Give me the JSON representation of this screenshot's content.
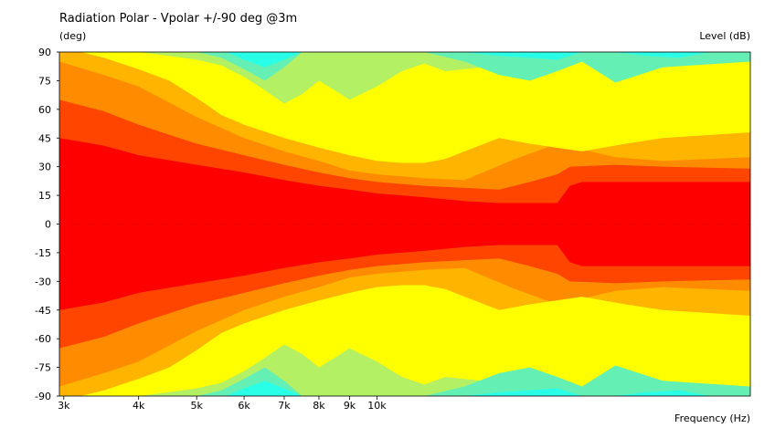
{
  "chart_data": {
    "type": "heatmap",
    "title": "Radiation Polar - Vpolar +/-90 deg @3m",
    "ylabel": "(deg)",
    "xlabel": "Frequency  (Hz)",
    "colorbar_label": "Level  (dB)",
    "x_scale": "log",
    "xlim": [
      2950,
      42000
    ],
    "ylim": [
      -90,
      90
    ],
    "x_ticks": [
      {
        "value": 3000,
        "label": "3k"
      },
      {
        "value": 4000,
        "label": "4k"
      },
      {
        "value": 5000,
        "label": "5k"
      },
      {
        "value": 6000,
        "label": "6k"
      },
      {
        "value": 7000,
        "label": "7k"
      },
      {
        "value": 8000,
        "label": "8k"
      },
      {
        "value": 9000,
        "label": "9k"
      },
      {
        "value": 10000,
        "label": "10k"
      }
    ],
    "y_ticks": [
      90,
      75,
      60,
      45,
      30,
      15,
      0,
      -15,
      -30,
      -45,
      -60,
      -75,
      -90
    ],
    "level_colors": [
      "#ff0000",
      "#ff4500",
      "#ff8c00",
      "#ffb400",
      "#ffff00",
      "#b4f064",
      "#64f0b4",
      "#28ffe6",
      "#00d2ff"
    ],
    "contours": [
      {
        "level": 1,
        "color": "#ff4500",
        "x": [
          2950,
          3500,
          4000,
          5000,
          6000,
          7000,
          8000,
          9000,
          10000,
          12000,
          14000,
          16000,
          20000,
          21000,
          22000,
          30000,
          42000
        ],
        "y": [
          45,
          41,
          36,
          31,
          27,
          23,
          20,
          18,
          16,
          14,
          12,
          11,
          11,
          20,
          22,
          22,
          22
        ]
      },
      {
        "level": 2,
        "color": "#ff8c00",
        "x": [
          2950,
          3500,
          4000,
          5000,
          6000,
          7000,
          8000,
          9000,
          10000,
          12000,
          16000,
          18000,
          20000,
          21000,
          25000,
          30000,
          42000
        ],
        "y": [
          65,
          59,
          52,
          42,
          36,
          31,
          27,
          24,
          22,
          20,
          18,
          22,
          26,
          30,
          31,
          30,
          29
        ]
      },
      {
        "level": 3,
        "color": "#ffb400",
        "x": [
          2950,
          3500,
          4000,
          5000,
          6000,
          7000,
          8000,
          9000,
          10000,
          12000,
          14000,
          17000,
          20000,
          25000,
          30000,
          42000
        ],
        "y": [
          85,
          78,
          72,
          56,
          45,
          38,
          33,
          28,
          26,
          24,
          23,
          34,
          42,
          35,
          33,
          35
        ]
      },
      {
        "level": 4,
        "color": "#ffff00",
        "x": [
          2950,
          3200,
          3500,
          4000,
          4500,
          5000,
          5500,
          6000,
          7000,
          8000,
          9000,
          10000,
          11000,
          12000,
          13000,
          14000,
          16000,
          18000,
          22000,
          26000,
          30000,
          42000
        ],
        "y": [
          90,
          90,
          87,
          81,
          75,
          66,
          57,
          52,
          45,
          40,
          36,
          33,
          32,
          32,
          34,
          38,
          45,
          42,
          38,
          42,
          45,
          48
        ]
      },
      {
        "level": 5,
        "color": "#b4f064",
        "x": [
          3200,
          4000,
          4500,
          5000,
          5500,
          6000,
          6500,
          7000,
          7500,
          8000,
          8500,
          9000,
          10000,
          11000,
          12000,
          13000,
          15000,
          20000,
          30000,
          42000
        ],
        "y": [
          90,
          90,
          88,
          86,
          83,
          77,
          70,
          63,
          68,
          75,
          70,
          65,
          72,
          80,
          84,
          80,
          82,
          86,
          86,
          90
        ]
      },
      {
        "level": 6,
        "color": "#64f0b4",
        "x": [
          5000,
          5500,
          6000,
          6500,
          7000,
          7500,
          8000,
          9000,
          10000,
          12000,
          14000,
          16000,
          18000,
          20000,
          22000,
          25000,
          30000,
          42000
        ],
        "y": [
          90,
          87,
          81,
          75,
          82,
          90,
          90,
          90,
          90,
          90,
          85,
          78,
          75,
          80,
          85,
          74,
          82,
          85
        ]
      },
      {
        "level": 7,
        "color": "#28ffe6",
        "x": [
          5600,
          6000,
          6500,
          7000,
          7500,
          9000,
          10000,
          12000,
          14000,
          16000,
          20000,
          22000,
          25000,
          28000,
          32000,
          36000,
          42000
        ],
        "y": [
          90,
          86,
          82,
          86,
          90,
          90,
          90,
          90,
          90,
          88,
          86,
          90,
          90,
          88,
          87,
          90,
          90
        ]
      }
    ]
  }
}
